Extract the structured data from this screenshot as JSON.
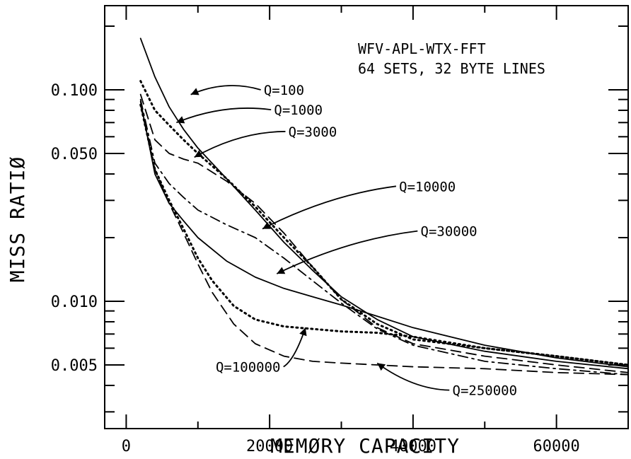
{
  "chart_data": {
    "type": "line",
    "title": "",
    "annotation_lines": [
      "WFV-APL-WTX-FFT",
      "64 SETS, 32 BYTE LINES"
    ],
    "xlabel": "MEMØRY CAPACITY",
    "ylabel": "MISS RATIØ",
    "x_scale": "linear",
    "y_scale": "log",
    "xlim": [
      -3000,
      70000
    ],
    "ylim": [
      0.0025,
      0.25
    ],
    "x_ticks": [
      0,
      20000,
      40000,
      60000
    ],
    "x_tick_labels": [
      "0",
      "20000",
      "40000",
      "60000"
    ],
    "y_ticks": [
      0.1,
      0.05,
      0.01,
      0.005
    ],
    "y_tick_labels": [
      "0.100",
      "0.050",
      "0.010",
      "0.005"
    ],
    "grid": false,
    "legend": "none",
    "series": [
      {
        "name": "Q=100",
        "style": "solid",
        "x": [
          2000,
          4000,
          6000,
          8000,
          10000,
          14000,
          18000,
          22000,
          26000,
          30000,
          35000,
          40000,
          50000,
          60000,
          70000
        ],
        "y": [
          0.175,
          0.115,
          0.083,
          0.065,
          0.053,
          0.038,
          0.027,
          0.019,
          0.014,
          0.0105,
          0.0082,
          0.0068,
          0.0058,
          0.0052,
          0.0048
        ]
      },
      {
        "name": "Q=1000",
        "style": "dotted",
        "x": [
          2000,
          4000,
          6000,
          8000,
          10000,
          14000,
          18000,
          22000,
          26000,
          30000,
          35000,
          40000,
          50000,
          60000,
          70000
        ],
        "y": [
          0.11,
          0.08,
          0.068,
          0.058,
          0.05,
          0.038,
          0.028,
          0.02,
          0.0145,
          0.0102,
          0.0078,
          0.0066,
          0.006,
          0.0055,
          0.005
        ]
      },
      {
        "name": "Q=3000",
        "style": "dashed",
        "x": [
          2000,
          4000,
          6000,
          8000,
          10000,
          14000,
          18000,
          22000,
          26000,
          30000,
          35000,
          40000,
          50000,
          60000,
          70000
        ],
        "y": [
          0.095,
          0.058,
          0.05,
          0.047,
          0.045,
          0.037,
          0.029,
          0.021,
          0.0145,
          0.0102,
          0.0075,
          0.0063,
          0.0055,
          0.005,
          0.0046
        ]
      },
      {
        "name": "Q=10000",
        "style": "dashdot",
        "x": [
          2000,
          4000,
          6000,
          8000,
          10000,
          14000,
          18000,
          22000,
          26000,
          30000,
          35000,
          40000,
          50000,
          60000,
          70000
        ],
        "y": [
          0.09,
          0.045,
          0.036,
          0.031,
          0.027,
          0.023,
          0.02,
          0.016,
          0.0125,
          0.0098,
          0.0074,
          0.0062,
          0.0052,
          0.0048,
          0.0045
        ]
      },
      {
        "name": "Q=30000",
        "style": "solid",
        "x": [
          2000,
          4000,
          6000,
          8000,
          10000,
          14000,
          18000,
          22000,
          26000,
          30000,
          35000,
          40000,
          50000,
          60000,
          70000
        ],
        "y": [
          0.088,
          0.04,
          0.029,
          0.024,
          0.02,
          0.0155,
          0.013,
          0.0115,
          0.0105,
          0.0096,
          0.0085,
          0.0075,
          0.0062,
          0.0054,
          0.0049
        ]
      },
      {
        "name": "Q=100000",
        "style": "dotted",
        "x": [
          2000,
          4000,
          6000,
          8000,
          10000,
          12000,
          15000,
          18000,
          22000,
          26000,
          30000,
          35000,
          40000,
          50000,
          60000,
          70000
        ],
        "y": [
          0.085,
          0.042,
          0.03,
          0.022,
          0.016,
          0.0125,
          0.0095,
          0.0082,
          0.0076,
          0.0074,
          0.0072,
          0.0071,
          0.0068,
          0.006,
          0.0055,
          0.005
        ]
      },
      {
        "name": "Q=250000",
        "style": "dashed",
        "x": [
          2000,
          4000,
          6000,
          8000,
          10000,
          12000,
          15000,
          18000,
          22000,
          26000,
          30000,
          35000,
          40000,
          50000,
          60000,
          70000
        ],
        "y": [
          0.085,
          0.042,
          0.029,
          0.021,
          0.015,
          0.011,
          0.0078,
          0.0063,
          0.0055,
          0.0052,
          0.0051,
          0.005,
          0.0049,
          0.0048,
          0.0046,
          0.0045
        ]
      }
    ],
    "curve_labels": [
      {
        "text": "Q=100",
        "ax": 9000,
        "ay": 0.095,
        "tx": 22000,
        "ty": 0.1
      },
      {
        "text": "Q=1000",
        "ax": 7000,
        "ay": 0.07,
        "tx": 24000,
        "ty": 0.0805
      },
      {
        "text": "Q=3000",
        "ax": 9500,
        "ay": 0.048,
        "tx": 26000,
        "ty": 0.0635
      },
      {
        "text": "Q=10000",
        "ax": 19000,
        "ay": 0.022,
        "tx": 42000,
        "ty": 0.035
      },
      {
        "text": "Q=30000",
        "ax": 21000,
        "ay": 0.0135,
        "tx": 45000,
        "ty": 0.0215
      },
      {
        "text": "Q=100000",
        "ax": 25000,
        "ay": 0.0075,
        "tx": 17000,
        "ty": 0.0049
      },
      {
        "text": "Q=250000",
        "ax": 35000,
        "ay": 0.0051,
        "tx": 50000,
        "ty": 0.0038
      }
    ]
  }
}
